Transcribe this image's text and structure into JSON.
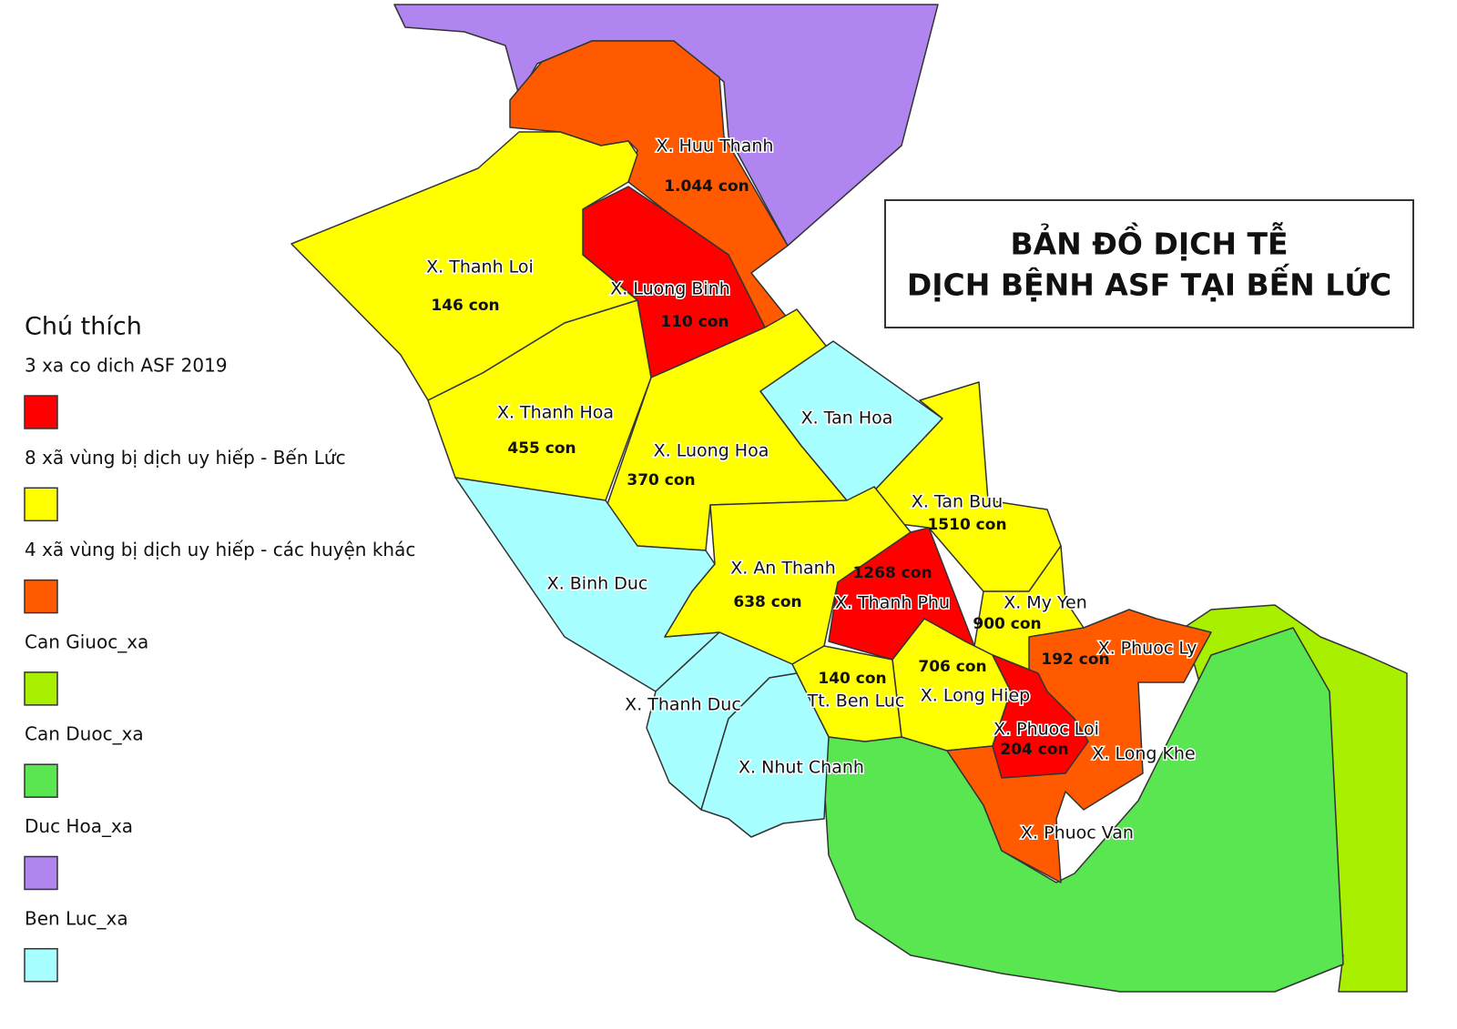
{
  "title": {
    "line1": "BẢN ĐỒ DỊCH TỄ",
    "line2": "DỊCH BỆNH ASF TẠI BẾN LỨC"
  },
  "legend": {
    "heading": "Chú thích",
    "items": [
      {
        "label": "3 xa co dich ASF 2019",
        "color": "#ff0000"
      },
      {
        "label": "8 xã vùng bị dịch uy hiếp - Bến Lức",
        "color": "#ffff00"
      },
      {
        "label": "4 xã vùng bị dịch uy hiếp - các huyện khác",
        "color": "#ff5a00"
      },
      {
        "label": "Can Giuoc_xa",
        "color": "#a8f000"
      },
      {
        "label": "Can Duoc_xa",
        "color": "#5ae650"
      },
      {
        "label": "Duc Hoa_xa",
        "color": "#b085f0"
      },
      {
        "label": "Ben Luc_xa",
        "color": "#a8ffff"
      }
    ]
  },
  "regions": [
    {
      "name": "X. Huu Thanh",
      "count": "1.044 con"
    },
    {
      "name": "X. Thanh Loi",
      "count": "146 con"
    },
    {
      "name": "X. Luong Binh",
      "count": "110 con"
    },
    {
      "name": "X. Thanh Hoa",
      "count": "455 con"
    },
    {
      "name": "X. Luong Hoa",
      "count": "370 con"
    },
    {
      "name": "X. Tan Hoa"
    },
    {
      "name": "X. Tan Buu",
      "count": "1510 con"
    },
    {
      "name": "X. An Thanh",
      "count": "638 con"
    },
    {
      "name": "X. Binh Duc"
    },
    {
      "name": "X. Thanh Phu",
      "count": "1268 con"
    },
    {
      "name": "X. My Yen",
      "count": "900 con"
    },
    {
      "name": "X. Long Hiep",
      "count": "706 con"
    },
    {
      "name": "Tt. Ben Luc",
      "count": "140 con"
    },
    {
      "name": "X. Phuoc Ly",
      "count": "192 con"
    },
    {
      "name": "X. Thanh Duc"
    },
    {
      "name": "X. Phuoc Loi",
      "count": "204 con"
    },
    {
      "name": "X. Long Khe"
    },
    {
      "name": "X. Nhut Chanh"
    },
    {
      "name": "X. Phuoc Van"
    }
  ]
}
